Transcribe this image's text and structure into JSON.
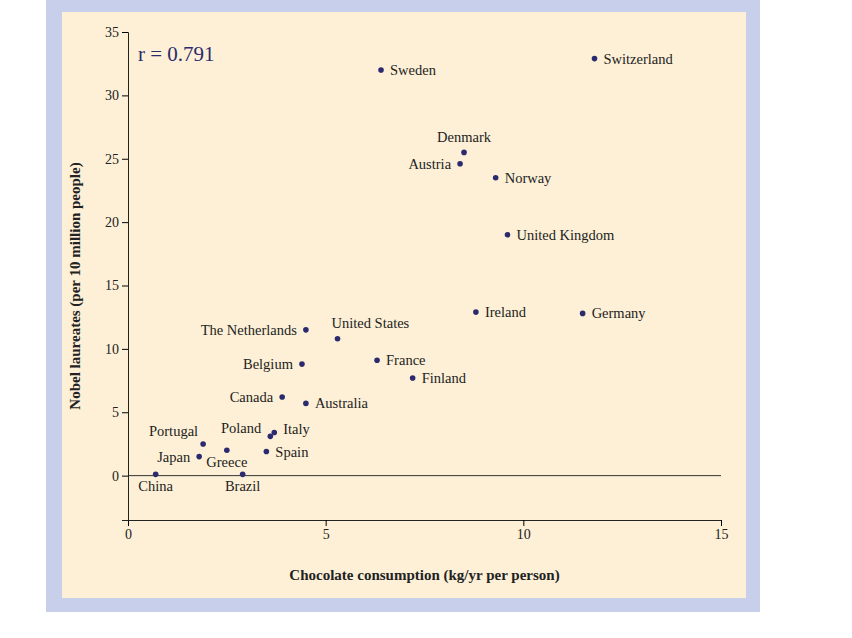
{
  "chart_data": {
    "type": "scatter",
    "annotation": "r = 0.791",
    "x_label": "Chocolate consumption (kg/yr per person)",
    "y_label": "Nobel laureates (per 10 million people)",
    "labels": [
      "Sweden",
      "Switzerland",
      "Denmark",
      "Austria",
      "Norway",
      "United Kingdom",
      "Ireland",
      "Germany",
      "The Netherlands",
      "United States",
      "Belgium",
      "France",
      "Finland",
      "Canada",
      "Australia",
      "Portugal",
      "Poland",
      "Italy",
      "Japan",
      "Greece",
      "Spain",
      "China",
      "Brazil"
    ],
    "x": [
      6.4,
      11.8,
      8.5,
      8.4,
      9.3,
      9.6,
      8.8,
      11.5,
      4.5,
      5.3,
      4.4,
      6.3,
      7.2,
      3.9,
      4.5,
      1.9,
      3.6,
      3.7,
      1.8,
      2.5,
      3.5,
      0.7,
      2.9
    ],
    "values": [
      32.0,
      32.9,
      25.5,
      24.6,
      23.5,
      19.0,
      12.9,
      12.8,
      11.5,
      10.8,
      8.8,
      9.1,
      7.7,
      6.2,
      5.7,
      2.5,
      3.1,
      3.4,
      1.5,
      2.0,
      1.9,
      0.1,
      0.1
    ],
    "color": "#2b2a6e",
    "marker": "circle",
    "xlim": [
      0,
      15
    ],
    "xticks": [
      0,
      5,
      10,
      15
    ],
    "ylim": [
      -3.5,
      35
    ],
    "yticks": [
      0,
      5,
      10,
      15,
      20,
      25,
      30,
      35
    ]
  }
}
